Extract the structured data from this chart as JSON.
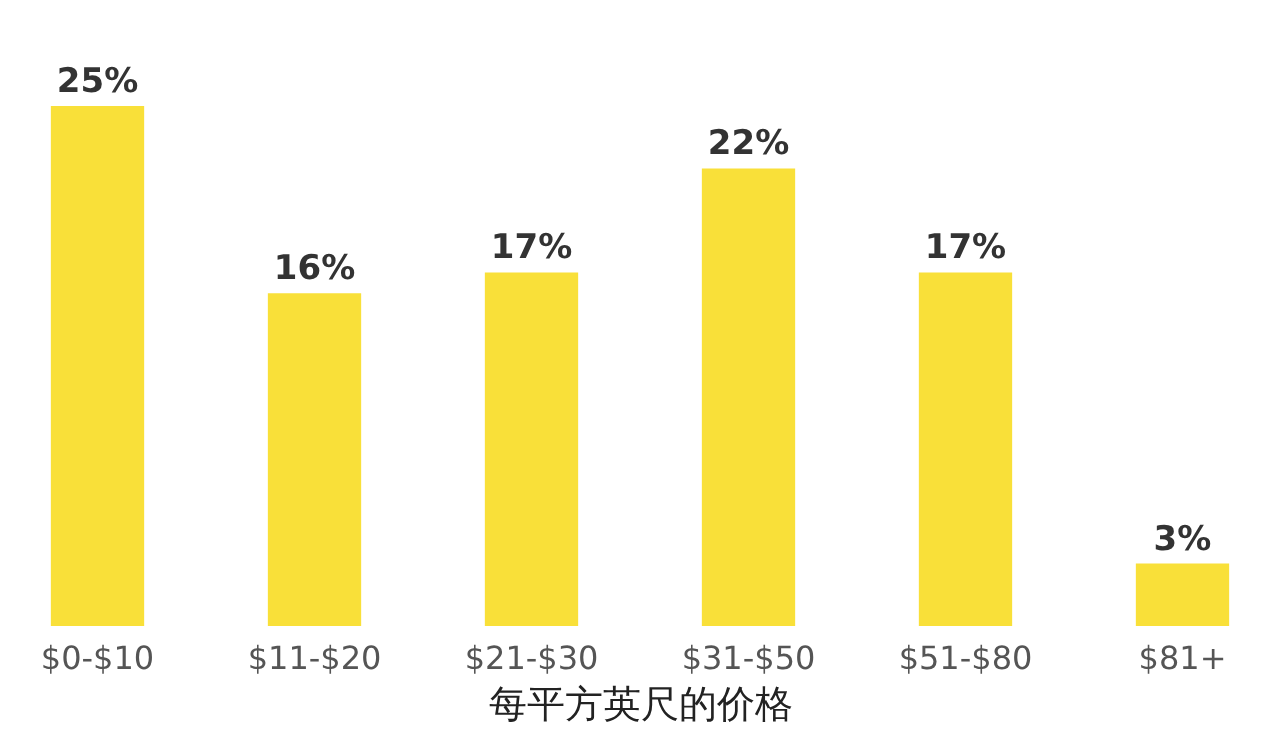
{
  "chart_data": {
    "type": "bar",
    "xlabel": "每平方英尺的价格",
    "categories": [
      "$0-$10",
      "$11-$20",
      "$21-$30",
      "$31-$50",
      "$51-$80",
      "$81+"
    ],
    "values": [
      25,
      16,
      17,
      22,
      17,
      3
    ],
    "value_labels": [
      "25%",
      "16%",
      "17%",
      "22%",
      "17%",
      "3%"
    ],
    "color": "#f9e039",
    "grid": false
  }
}
